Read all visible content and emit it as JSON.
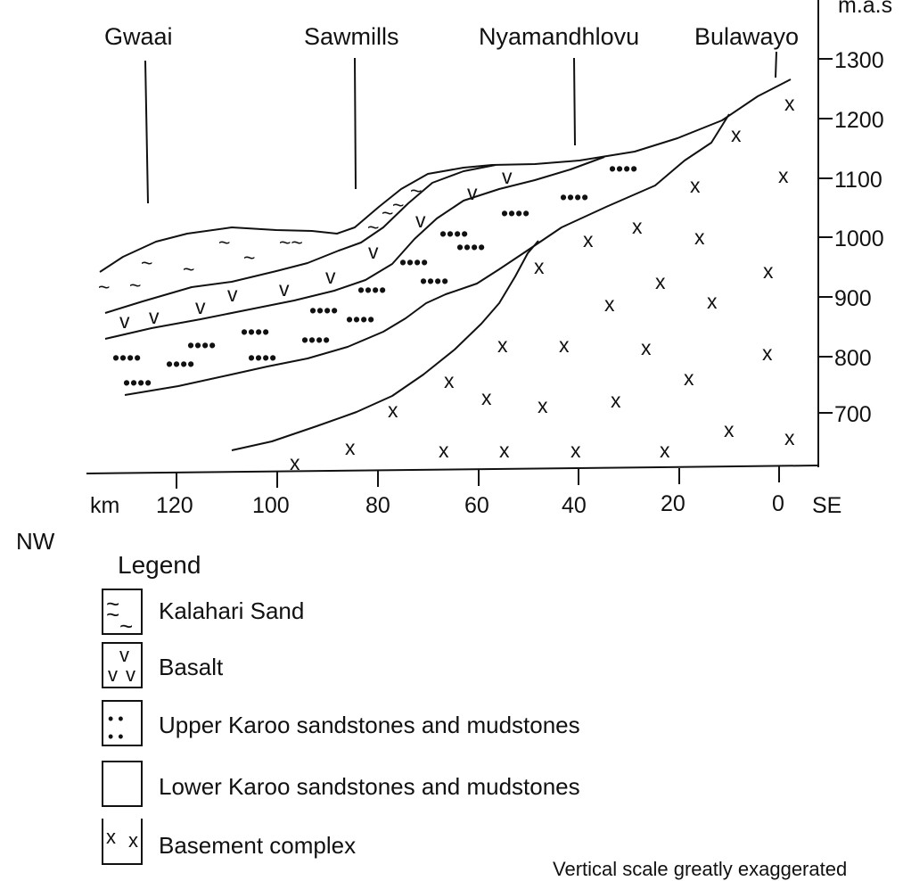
{
  "places": [
    {
      "name": "Gwaai"
    },
    {
      "name": "Sawmills"
    },
    {
      "name": "Nyamandhlovu"
    },
    {
      "name": "Bulawayo"
    }
  ],
  "elevation_axis": {
    "unit": "m.a.s",
    "ticks": [
      "1300",
      "1200",
      "1100",
      "1000",
      "900",
      "800",
      "700"
    ]
  },
  "distance_axis": {
    "unit": "km",
    "ticks": [
      "120",
      "100",
      "80",
      "60",
      "40",
      "20",
      "0"
    ],
    "left_end": "NW",
    "right_end": "SE"
  },
  "legend": {
    "title": "Legend",
    "items": [
      {
        "label": "Kalahari Sand",
        "symbol": "~"
      },
      {
        "label": "Basalt",
        "symbol": "v"
      },
      {
        "label": "Upper Karoo sandstones and mudstones",
        "symbol": "dots"
      },
      {
        "label": "Lower Karoo sandstones and mudstones",
        "symbol": "blank"
      },
      {
        "label": "Basement complex",
        "symbol": "x"
      }
    ]
  },
  "note": "Vertical scale greatly exaggerated"
}
